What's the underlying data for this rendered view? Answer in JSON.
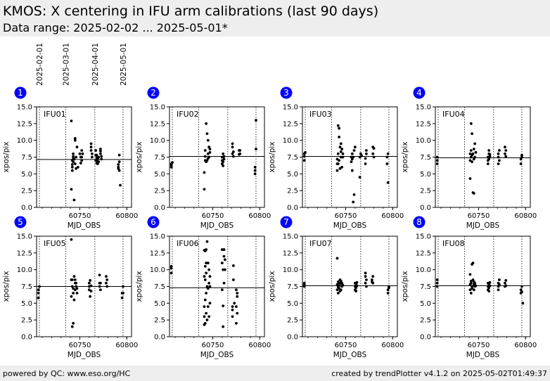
{
  "header": {
    "title": "KMOS: X centering in IFU arm calibrations (last 90 days)",
    "subtitle": "Data range: 2025-02-02 ... 2025-05-01*"
  },
  "footer": {
    "left": "powered by QC: www.eso.org/HC",
    "right": "created by trendPlotter v4.1.2 on 2025-05-02T01:49:37"
  },
  "date_markers": [
    {
      "label": "2025-02-01",
      "mjd": 60707
    },
    {
      "label": "2025-03-01",
      "mjd": 60735
    },
    {
      "label": "2025-04-01",
      "mjd": 60766
    },
    {
      "label": "2025-05-01",
      "mjd": 60796
    }
  ],
  "chart_data": [
    {
      "type": "scatter",
      "panel": "1",
      "label": "IFU01",
      "xlabel": "MJD_OBS",
      "ylabel": "xpos/pix",
      "xlim": [
        60704,
        60805
      ],
      "ylim": [
        0,
        15
      ],
      "xticks": [
        60750,
        60800
      ],
      "yticks": [
        0.0,
        2.5,
        5.0,
        7.5,
        10.0,
        12.5,
        15.0
      ],
      "ref": 7.15,
      "x": [
        60741,
        60741,
        60742,
        60742,
        60742,
        60742,
        60743,
        60743,
        60743,
        60743,
        60744,
        60744,
        60745,
        60745,
        60745,
        60746,
        60746,
        60747,
        60748,
        60750,
        60751,
        60751,
        60752,
        60752,
        60752,
        60753,
        60762,
        60762,
        60762,
        60763,
        60763,
        60767,
        60767,
        60767,
        60768,
        60768,
        60768,
        60768,
        60769,
        60769,
        60770,
        60770,
        60772,
        60772,
        60772,
        60773,
        60773,
        60791,
        60791,
        60791,
        60792,
        60792,
        60792,
        60793
      ],
      "y": [
        12.9,
        2.7,
        5.5,
        6.0,
        6.4,
        7.0,
        6.8,
        7.3,
        7.6,
        8.0,
        1.1,
        7.2,
        10.0,
        10.3,
        6.5,
        5.8,
        7.5,
        9.0,
        6.0,
        8.0,
        7.5,
        6.6,
        7.0,
        7.5,
        8.5,
        8.0,
        9.0,
        8.5,
        9.5,
        8.0,
        7.5,
        7.0,
        7.8,
        8.5,
        6.6,
        7.0,
        7.4,
        7.8,
        6.5,
        7.2,
        7.5,
        6.8,
        8.0,
        8.4,
        8.7,
        7.6,
        7.2,
        5.8,
        6.0,
        6.4,
        5.5,
        6.8,
        7.8,
        3.3
      ]
    },
    {
      "type": "scatter",
      "panel": "2",
      "label": "IFU02",
      "xlabel": "MJD_OBS",
      "ylabel": "xpos/pix",
      "xlim": [
        60704,
        60805
      ],
      "ylim": [
        0,
        15
      ],
      "xticks": [
        60750,
        60800
      ],
      "yticks": [
        0.0,
        2.5,
        5.0,
        7.5,
        10.0,
        12.5,
        15.0
      ],
      "ref": 7.6,
      "x": [
        60706,
        60706,
        60706,
        60707,
        60741,
        60741,
        60742,
        60742,
        60742,
        60743,
        60743,
        60744,
        60744,
        60745,
        60745,
        60745,
        60746,
        60746,
        60747,
        60747,
        60760,
        60760,
        60760,
        60761,
        60761,
        60761,
        60762,
        60762,
        60771,
        60771,
        60771,
        60772,
        60772,
        60778,
        60778,
        60779,
        60779,
        60795,
        60795,
        60795,
        60796,
        60796
      ],
      "y": [
        6.0,
        6.3,
        6.5,
        6.7,
        5.2,
        2.7,
        7.0,
        7.6,
        8.5,
        12.5,
        6.8,
        11.0,
        7.0,
        10.0,
        7.3,
        8.0,
        9.0,
        7.5,
        8.2,
        8.7,
        6.5,
        7.0,
        7.5,
        6.2,
        6.8,
        8.0,
        7.2,
        7.6,
        8.0,
        9.0,
        9.5,
        8.3,
        7.6,
        8.5,
        7.9,
        8.0,
        8.5,
        5.0,
        5.5,
        6.0,
        8.7,
        13.0
      ]
    },
    {
      "type": "scatter",
      "panel": "3",
      "label": "IFU03",
      "xlabel": "MJD_OBS",
      "ylabel": "xpos/pix",
      "xlim": [
        60704,
        60805
      ],
      "ylim": [
        0,
        15
      ],
      "xticks": [
        60750,
        60800
      ],
      "yticks": [
        0.0,
        2.5,
        5.0,
        7.5,
        10.0,
        12.5,
        15.0
      ],
      "ref": 7.6,
      "x": [
        60706,
        60706,
        60706,
        60707,
        60741,
        60741,
        60741,
        60742,
        60742,
        60742,
        60743,
        60743,
        60743,
        60744,
        60744,
        60745,
        60745,
        60745,
        60746,
        60746,
        60747,
        60747,
        60756,
        60756,
        60757,
        60757,
        60757,
        60758,
        60758,
        60759,
        60759,
        60760,
        60765,
        60765,
        60766,
        60767,
        60771,
        60771,
        60772,
        60772,
        60779,
        60779,
        60780,
        60780,
        60794,
        60794,
        60795,
        60795
      ],
      "y": [
        7.0,
        7.6,
        8.0,
        8.2,
        5.5,
        6.5,
        7.2,
        12.2,
        8.0,
        6.5,
        11.8,
        10.5,
        7.0,
        9.0,
        5.8,
        9.5,
        7.5,
        8.3,
        6.0,
        8.7,
        7.5,
        8.0,
        6.8,
        7.5,
        8.0,
        7.2,
        5.5,
        0.8,
        7.5,
        1.9,
        8.5,
        9.0,
        4.5,
        7.5,
        8.0,
        7.7,
        6.5,
        7.3,
        8.0,
        8.5,
        8.0,
        9.0,
        8.8,
        7.5,
        6.5,
        7.5,
        8.0,
        3.7
      ]
    },
    {
      "type": "scatter",
      "panel": "4",
      "label": "IFU04",
      "xlabel": "MJD_OBS",
      "ylabel": "xpos/pix",
      "xlim": [
        60704,
        60805
      ],
      "ylim": [
        0,
        15
      ],
      "xticks": [
        60750,
        60800
      ],
      "yticks": [
        0.0,
        2.5,
        5.0,
        7.5,
        10.0,
        12.5,
        15.0
      ],
      "ref": 7.4,
      "x": [
        60706,
        60706,
        60706,
        60741,
        60741,
        60741,
        60742,
        60742,
        60742,
        60743,
        60743,
        60743,
        60744,
        60744,
        60745,
        60745,
        60745,
        60746,
        60746,
        60747,
        60760,
        60760,
        60760,
        60761,
        60761,
        60761,
        60762,
        60762,
        60771,
        60771,
        60771,
        60772,
        60772,
        60778,
        60778,
        60779,
        60779,
        60795,
        60795,
        60796,
        60796
      ],
      "y": [
        6.5,
        7.0,
        7.5,
        7.0,
        8.0,
        4.3,
        12.5,
        7.5,
        8.5,
        11.0,
        6.8,
        7.8,
        2.2,
        8.0,
        2.1,
        7.2,
        8.7,
        9.5,
        7.5,
        8.2,
        6.5,
        7.0,
        7.5,
        8.0,
        8.5,
        7.2,
        7.6,
        7.9,
        6.5,
        7.5,
        8.0,
        8.5,
        7.0,
        8.0,
        9.0,
        8.5,
        7.6,
        6.5,
        7.2,
        7.5,
        7.8
      ]
    },
    {
      "type": "scatter",
      "panel": "5",
      "label": "IFU05",
      "xlabel": "MJD_OBS",
      "ylabel": "xpos/pix",
      "xlim": [
        60704,
        60805
      ],
      "ylim": [
        0,
        15
      ],
      "xticks": [
        60750,
        60800
      ],
      "yticks": [
        0.0,
        2.5,
        5.0,
        7.5,
        10.0,
        12.5,
        15.0
      ],
      "ref": 7.5,
      "x": [
        60706,
        60706,
        60706,
        60707,
        60741,
        60741,
        60741,
        60742,
        60742,
        60742,
        60743,
        60743,
        60743,
        60744,
        60744,
        60745,
        60745,
        60745,
        60746,
        60746,
        60747,
        60747,
        60760,
        60760,
        60760,
        60761,
        60761,
        60762,
        60762,
        60771,
        60771,
        60771,
        60772,
        60772,
        60778,
        60778,
        60779,
        60779,
        60795,
        60795,
        60796,
        60796
      ],
      "y": [
        5.8,
        6.5,
        7.0,
        7.5,
        14.5,
        8.5,
        6.0,
        1.5,
        7.5,
        8.5,
        2.0,
        6.5,
        7.2,
        9.0,
        5.5,
        7.0,
        8.0,
        8.5,
        7.5,
        8.0,
        6.5,
        7.2,
        7.0,
        7.5,
        8.0,
        6.0,
        8.4,
        6.8,
        7.6,
        9.2,
        8.0,
        7.5,
        7.0,
        8.0,
        9.0,
        8.0,
        8.5,
        7.5,
        5.8,
        6.5,
        7.5,
        6.5
      ]
    },
    {
      "type": "scatter",
      "panel": "6",
      "label": "IFU06",
      "xlabel": "MJD_OBS",
      "ylabel": "xpos/pix",
      "xlim": [
        60704,
        60805
      ],
      "ylim": [
        0,
        15
      ],
      "xticks": [
        60750,
        60800
      ],
      "yticks": [
        0.0,
        2.5,
        5.0,
        7.5,
        10.0,
        12.5,
        15.0
      ],
      "ref": 7.3,
      "x": [
        60706,
        60706,
        60706,
        60741,
        60741,
        60741,
        60741,
        60741,
        60742,
        60742,
        60742,
        60742,
        60742,
        60743,
        60743,
        60743,
        60743,
        60743,
        60744,
        60744,
        60744,
        60745,
        60745,
        60745,
        60746,
        60746,
        60746,
        60747,
        60747,
        60747,
        60760,
        60760,
        60760,
        60761,
        60761,
        60761,
        60762,
        60762,
        60762,
        60763,
        60763,
        60771,
        60771,
        60771,
        60772,
        60772,
        60773,
        60775,
        60775,
        60775,
        60776,
        60776,
        60776
      ],
      "y": [
        9.5,
        10.2,
        10.5,
        1.8,
        3.0,
        4.5,
        9.0,
        12.9,
        2.0,
        5.5,
        8.5,
        10.5,
        12.8,
        3.5,
        6.5,
        9.5,
        11.0,
        13.0,
        2.5,
        7.5,
        14.2,
        4.5,
        7.2,
        11.0,
        3.0,
        8.0,
        10.0,
        5.0,
        7.5,
        9.0,
        13.0,
        11.0,
        7.0,
        1.5,
        4.6,
        10.0,
        13.0,
        8.0,
        12.0,
        10.0,
        11.5,
        3.0,
        4.0,
        4.5,
        10.6,
        8.5,
        5.0,
        2.0,
        4.5,
        7.0,
        3.5,
        6.5,
        6.0
      ]
    },
    {
      "type": "scatter",
      "panel": "7",
      "label": "IFU07",
      "xlabel": "MJD_OBS",
      "ylabel": "xpos/pix",
      "xlim": [
        60704,
        60805
      ],
      "ylim": [
        0,
        15
      ],
      "xticks": [
        60750,
        60800
      ],
      "yticks": [
        0.0,
        2.5,
        5.0,
        7.5,
        10.0,
        12.5,
        15.0
      ],
      "ref": 7.6,
      "x": [
        60706,
        60706,
        60706,
        60741,
        60741,
        60741,
        60742,
        60742,
        60742,
        60743,
        60743,
        60743,
        60744,
        60744,
        60745,
        60745,
        60745,
        60746,
        60746,
        60747,
        60760,
        60760,
        60760,
        60761,
        60761,
        60761,
        60762,
        60762,
        60771,
        60771,
        60771,
        60772,
        60772,
        60778,
        60778,
        60779,
        60779,
        60795,
        60795,
        60796,
        60796
      ],
      "y": [
        7.5,
        7.8,
        8.0,
        7.0,
        11.7,
        7.8,
        6.5,
        7.4,
        8.2,
        7.2,
        7.6,
        8.0,
        6.8,
        8.5,
        7.0,
        7.9,
        8.3,
        7.5,
        8.0,
        7.7,
        7.0,
        7.5,
        8.0,
        6.8,
        7.3,
        7.8,
        7.6,
        8.1,
        8.0,
        9.0,
        9.5,
        7.5,
        8.5,
        8.2,
        8.5,
        9.0,
        8.0,
        6.5,
        7.0,
        7.3,
        7.5
      ]
    },
    {
      "type": "scatter",
      "panel": "8",
      "label": "IFU08",
      "xlabel": "MJD_OBS",
      "ylabel": "xpos/pix",
      "xlim": [
        60704,
        60805
      ],
      "ylim": [
        0,
        15
      ],
      "xticks": [
        60750,
        60800
      ],
      "yticks": [
        0.0,
        2.5,
        5.0,
        7.5,
        10.0,
        12.5,
        15.0
      ],
      "ref": 7.6,
      "x": [
        60706,
        60706,
        60706,
        60741,
        60741,
        60741,
        60742,
        60742,
        60742,
        60743,
        60743,
        60743,
        60744,
        60744,
        60745,
        60745,
        60745,
        60746,
        60746,
        60747,
        60760,
        60760,
        60760,
        60761,
        60761,
        60761,
        60762,
        60762,
        60771,
        60771,
        60771,
        60772,
        60772,
        60778,
        60778,
        60779,
        60779,
        60795,
        60795,
        60796,
        60796,
        60797
      ],
      "y": [
        7.5,
        8.0,
        8.5,
        7.0,
        9.3,
        7.8,
        6.5,
        8.0,
        8.3,
        10.8,
        7.5,
        7.2,
        11.0,
        8.5,
        7.0,
        7.8,
        8.2,
        7.5,
        8.0,
        7.6,
        7.0,
        7.5,
        8.0,
        6.8,
        7.3,
        7.8,
        7.6,
        8.1,
        7.0,
        7.5,
        8.0,
        8.5,
        7.8,
        7.5,
        8.0,
        8.4,
        7.6,
        6.5,
        7.0,
        7.5,
        6.7,
        5.0
      ]
    }
  ]
}
